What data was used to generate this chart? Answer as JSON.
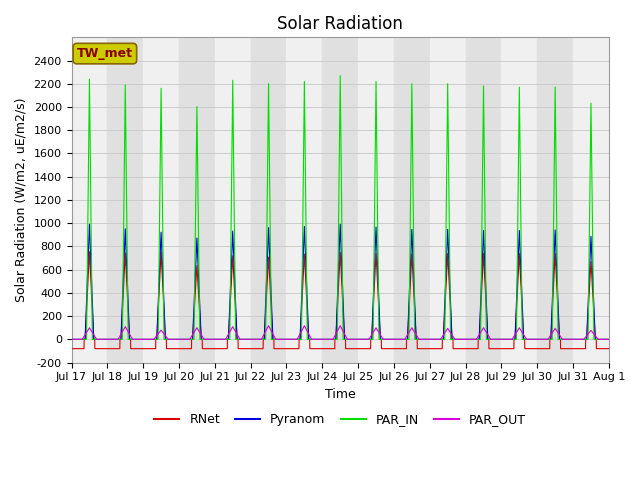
{
  "title": "Solar Radiation",
  "ylabel": "Solar Radiation (W/m2, uE/m2/s)",
  "xlabel": "Time",
  "ylim": [
    -200,
    2600
  ],
  "yticks": [
    -200,
    0,
    200,
    400,
    600,
    800,
    1000,
    1200,
    1400,
    1600,
    1800,
    2000,
    2200,
    2400
  ],
  "n_days": 15,
  "colors": {
    "RNet": "#dd0000",
    "Pyranom": "#0000dd",
    "PAR_IN": "#00dd00",
    "PAR_OUT": "#dd00dd"
  },
  "fig_bg_color": "#ffffff",
  "plot_bg_color": "#ffffff",
  "band_color_dark": "#e0e0e0",
  "band_color_light": "#f0f0f0",
  "grid_color": "#cccccc",
  "station_label": "TW_met",
  "station_label_color": "#880000",
  "station_box_facecolor": "#cccc00",
  "station_box_edgecolor": "#886600",
  "title_fontsize": 12,
  "label_fontsize": 9,
  "tick_fontsize": 8,
  "legend_fontsize": 9,
  "par_in_peaks": [
    2270,
    2220,
    2190,
    2030,
    2260,
    2230,
    2250,
    2300,
    2250,
    2230,
    2230,
    2210,
    2200,
    2200,
    2060
  ],
  "pyranom_peaks": [
    1000,
    960,
    930,
    880,
    940,
    970,
    980,
    1000,
    975,
    955,
    955,
    945,
    945,
    950,
    895
  ],
  "rnet_peaks": [
    760,
    750,
    755,
    640,
    725,
    715,
    740,
    755,
    745,
    740,
    745,
    745,
    745,
    745,
    675
  ],
  "par_out_peaks": [
    100,
    110,
    80,
    100,
    110,
    118,
    118,
    118,
    100,
    100,
    95,
    100,
    100,
    95,
    78
  ],
  "day_labels": [
    "Jul 17",
    "Jul 18",
    "Jul 19",
    "Jul 20",
    "Jul 21",
    "Jul 22",
    "Jul 23",
    "Jul 24",
    "Jul 25",
    "Jul 26",
    "Jul 27",
    "Jul 28",
    "Jul 29",
    "Jul 30",
    "Jul 31",
    "Aug 1"
  ]
}
